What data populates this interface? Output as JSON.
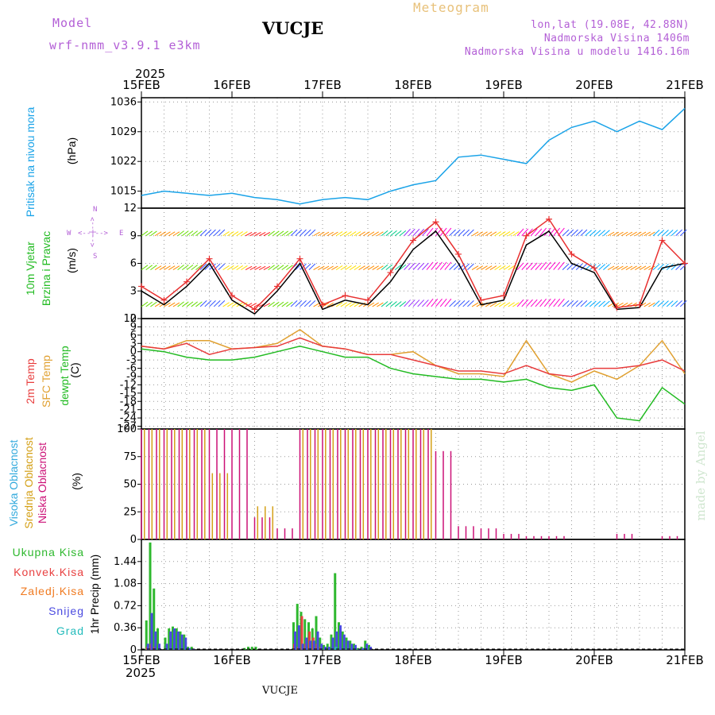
{
  "header": {
    "model_label": "Model",
    "model_name": "wrf-nmm_v3.9.1 e3km",
    "station": "VUCJE",
    "meteogram": "Meteogram",
    "lonlat": "lon,lat (19.08E, 42.88N)",
    "elevation": "Nadmorska Visina 1406m",
    "model_elevation": "Nadmorska Visina u modelu 1416.16m",
    "year_top": "2025",
    "year_bottom": "2025",
    "footer": "VUCJE",
    "watermark": "made by Angel"
  },
  "colors": {
    "pressure": "#1aa3e8",
    "wind": "#000000",
    "gust": "#e83030",
    "t2m": "#e83c3c",
    "tsfc": "#e0a030",
    "dew": "#22bb22",
    "high_cloud": "#33aadd",
    "mid_cloud": "#d4a017",
    "low_cloud": "#cc1177",
    "total": "#2eb82e",
    "conv": "#e84040",
    "frozen": "#f07a20",
    "snow": "#4a4ae0",
    "hail": "#22bbbb"
  },
  "axis": {
    "dates": [
      "15FEB",
      "16FEB",
      "17FEB",
      "18FEB",
      "19FEB",
      "20FEB",
      "21FEB"
    ]
  },
  "panels": {
    "pressure": {
      "label1": "Pritisak na nivou mora",
      "label2": "(hPa)"
    },
    "wind": {
      "label1": "10m Vjetar",
      "label2": "Brzina i Pravac",
      "label3": "(m/s)",
      "compass_n": "N",
      "compass_s": "S",
      "compass_w": "W",
      "compass_e": "E",
      "compass_ns": "<--|-->",
      "compass_ew": "<--|-->"
    },
    "temp": {
      "label1": "2m Temp",
      "label2": "SFC Temp",
      "label3": "dewpt Temp",
      "label4": "(C)"
    },
    "cloud": {
      "label1": "Visoka Oblacnost",
      "label2": "Srednja Oblacnost",
      "label3": "Niska Oblacnost",
      "label4": "(%)"
    },
    "precip": {
      "leg1": "Ukupna Kisa",
      "leg2": "Konvek.Kisa",
      "leg3": "Zaledj.Kisa",
      "leg4": "Snijeg",
      "leg5": "Grad",
      "ylabel": "1hr Precip (mm)"
    }
  },
  "chart_data": [
    {
      "type": "line",
      "title": "Pritisak na nivou mora",
      "ylabel": "(hPa)",
      "x_hours": [
        0,
        6,
        12,
        18,
        24,
        30,
        36,
        42,
        48,
        54,
        60,
        66,
        72,
        78,
        84,
        90,
        96,
        102,
        108,
        114,
        120,
        126,
        132,
        138,
        144
      ],
      "ylim": [
        1011,
        1037
      ],
      "yticks": [
        1015,
        1022,
        1029,
        1036
      ],
      "series": [
        {
          "name": "MSLP",
          "values": [
            1014,
            1015,
            1014.5,
            1014,
            1014.5,
            1013.5,
            1013,
            1012,
            1013,
            1013.5,
            1013,
            1015,
            1016.5,
            1017.5,
            1023,
            1023.5,
            1022.5,
            1021.5,
            1027,
            1030,
            1031.5,
            1029,
            1031.5,
            1029.5,
            1034.5
          ]
        }
      ]
    },
    {
      "type": "line",
      "title": "10m Vjetar Brzina i Pravac",
      "ylabel": "(m/s)",
      "x_hours": [
        0,
        6,
        12,
        18,
        24,
        30,
        36,
        42,
        48,
        54,
        60,
        66,
        72,
        78,
        84,
        90,
        96,
        102,
        108,
        114,
        120,
        126,
        132,
        138,
        144
      ],
      "ylim": [
        0,
        12
      ],
      "yticks": [
        0,
        3,
        6,
        9,
        12
      ],
      "series": [
        {
          "name": "Brzina",
          "values": [
            3,
            1.5,
            3.5,
            6,
            2,
            0.5,
            3,
            6,
            1,
            2,
            1.5,
            4,
            7.5,
            9.5,
            6,
            1.5,
            2,
            8,
            9.5,
            6,
            5,
            1,
            1.2,
            5.5,
            6
          ]
        },
        {
          "name": "Udar",
          "values": [
            3.5,
            2,
            4,
            6.5,
            2.5,
            1,
            3.5,
            6.5,
            1.5,
            2.5,
            2,
            5,
            8.5,
            10.5,
            7,
            2,
            2.5,
            9,
            10.8,
            7,
            5.5,
            1.2,
            1.5,
            8.5,
            6
          ]
        }
      ]
    },
    {
      "type": "line",
      "title": "Temperatura",
      "ylabel": "(C)",
      "x_hours": [
        0,
        6,
        12,
        18,
        24,
        30,
        36,
        42,
        48,
        54,
        60,
        66,
        72,
        78,
        84,
        90,
        96,
        102,
        108,
        114,
        120,
        126,
        132,
        138,
        144
      ],
      "ylim": [
        -28,
        12
      ],
      "yticks": [
        -27,
        -24,
        -21,
        -18,
        -15,
        -12,
        -9,
        -6,
        -3,
        0,
        3,
        6,
        9,
        12
      ],
      "series": [
        {
          "name": "2m Temp",
          "values": [
            2,
            1,
            3,
            -1,
            1,
            1.5,
            2,
            5,
            2,
            1,
            -1,
            -1,
            -3,
            -5,
            -7,
            -7,
            -8,
            -5,
            -8,
            -9,
            -6,
            -6,
            -5,
            -3,
            -7
          ]
        },
        {
          "name": "SFC Temp",
          "values": [
            2,
            1,
            4,
            4,
            1,
            1.5,
            3,
            8,
            2,
            1,
            -1,
            -1,
            0,
            -5,
            -8,
            -8,
            -9,
            4,
            -8,
            -11,
            -7,
            -10,
            -5,
            4,
            -8
          ]
        },
        {
          "name": "dewpt Temp",
          "values": [
            1,
            0,
            -2,
            -3,
            -3,
            -2,
            0,
            2,
            0,
            -2,
            -2,
            -6,
            -8,
            -9,
            -10,
            -10,
            -11,
            -10,
            -13,
            -14,
            -12,
            -24,
            -25,
            -13,
            -19
          ]
        }
      ]
    },
    {
      "type": "bar",
      "title": "Oblacnost",
      "ylabel": "(%)",
      "x_hours": [
        0,
        6,
        12,
        18,
        24,
        30,
        36,
        42,
        48,
        54,
        60,
        66,
        72,
        78,
        84,
        90,
        96,
        102,
        108,
        114,
        120,
        126,
        132,
        138,
        144
      ],
      "ylim": [
        0,
        100
      ],
      "yticks": [
        0,
        25,
        50,
        75,
        100
      ],
      "series": [
        {
          "name": "Visoka Oblacnost",
          "values": [
            0,
            0,
            0,
            0,
            0,
            0,
            0,
            0,
            0,
            0,
            0,
            0,
            0,
            0,
            0,
            0,
            0,
            0,
            0,
            0,
            0,
            0,
            0,
            0,
            0
          ]
        },
        {
          "name": "Srednja Oblacnost",
          "values": [
            100,
            100,
            100,
            60,
            0,
            30,
            0,
            100,
            100,
            100,
            100,
            100,
            100,
            0,
            0,
            0,
            0,
            0,
            0,
            0,
            0,
            0,
            0,
            0,
            0
          ]
        },
        {
          "name": "Niska Oblacnost",
          "values": [
            100,
            100,
            100,
            100,
            100,
            20,
            10,
            100,
            100,
            100,
            100,
            100,
            100,
            80,
            12,
            10,
            5,
            3,
            3,
            0,
            0,
            5,
            0,
            3,
            0
          ]
        }
      ]
    },
    {
      "type": "bar",
      "title": "1hr Precip",
      "ylabel": "(mm)",
      "x_hours": [
        0,
        1,
        2,
        3,
        4,
        5,
        6,
        7,
        8,
        9,
        10,
        11,
        12,
        13,
        14,
        15,
        16,
        17,
        18,
        19,
        20,
        21,
        22,
        23,
        24,
        25,
        26,
        27,
        28,
        29,
        30,
        31,
        32,
        33,
        34,
        35,
        36,
        37,
        38,
        39,
        40,
        41,
        42,
        43,
        44,
        45,
        46,
        47,
        48,
        49,
        50,
        51,
        52,
        53,
        54,
        55,
        56,
        57,
        58,
        59,
        60,
        61,
        62,
        63,
        64,
        65,
        66,
        67,
        68,
        69,
        70,
        71,
        72
      ],
      "ylim": [
        0,
        1.8
      ],
      "yticks": [
        0,
        0.36,
        0.72,
        1.08,
        1.44
      ],
      "series": [
        {
          "name": "Ukupna Kisa",
          "values": [
            0,
            0.48,
            1.75,
            1.0,
            0.35,
            0,
            0.2,
            0.35,
            0.38,
            0.35,
            0.3,
            0.25,
            0.05,
            0.05,
            0,
            0,
            0,
            0,
            0,
            0,
            0,
            0,
            0,
            0,
            0,
            0,
            0,
            0.03,
            0.05,
            0.05,
            0.05,
            0,
            0,
            0,
            0,
            0,
            0,
            0,
            0,
            0,
            0.45,
            0.75,
            0.62,
            0.5,
            0.45,
            0.35,
            0.55,
            0.2,
            0.08,
            0.1,
            0.25,
            1.25,
            0.45,
            0.3,
            0.2,
            0.15,
            0.1,
            0.03,
            0.05,
            0.15,
            0.08,
            0,
            0,
            0,
            0,
            0,
            0,
            0,
            0,
            0,
            0,
            0,
            0
          ]
        },
        {
          "name": "Konvek.Kisa",
          "values": [
            0,
            0.05,
            0.1,
            0.05,
            0,
            0,
            0,
            0,
            0,
            0,
            0,
            0,
            0,
            0,
            0,
            0,
            0,
            0,
            0,
            0,
            0,
            0,
            0,
            0,
            0,
            0,
            0,
            0,
            0,
            0,
            0,
            0,
            0,
            0,
            0,
            0,
            0,
            0,
            0,
            0,
            0.1,
            0.05,
            0.55,
            0.1,
            0.3,
            0.2,
            0.1,
            0.05,
            0,
            0,
            0,
            0.05,
            0,
            0,
            0,
            0,
            0,
            0,
            0,
            0,
            0,
            0,
            0,
            0,
            0,
            0,
            0,
            0,
            0,
            0,
            0,
            0,
            0
          ]
        },
        {
          "name": "Zaledj.Kisa",
          "values": [
            0,
            0,
            0,
            0,
            0,
            0,
            0,
            0,
            0,
            0,
            0,
            0,
            0,
            0,
            0,
            0,
            0,
            0,
            0,
            0,
            0,
            0,
            0,
            0,
            0,
            0,
            0,
            0,
            0,
            0,
            0,
            0,
            0,
            0,
            0,
            0,
            0,
            0,
            0,
            0,
            0,
            0,
            0,
            0,
            0,
            0,
            0,
            0,
            0,
            0,
            0,
            0,
            0,
            0,
            0,
            0,
            0,
            0,
            0,
            0,
            0,
            0,
            0,
            0,
            0,
            0,
            0,
            0,
            0,
            0,
            0,
            0,
            0
          ]
        },
        {
          "name": "Snijeg",
          "values": [
            0,
            0.1,
            0.6,
            0.3,
            0.1,
            0,
            0.1,
            0.3,
            0.35,
            0.3,
            0.25,
            0.2,
            0.03,
            0.02,
            0,
            0,
            0,
            0,
            0,
            0,
            0,
            0,
            0,
            0,
            0,
            0,
            0,
            0,
            0,
            0,
            0,
            0,
            0,
            0,
            0,
            0,
            0,
            0,
            0,
            0,
            0.3,
            0.4,
            0.1,
            0.2,
            0.15,
            0.15,
            0.3,
            0.1,
            0.05,
            0.05,
            0.2,
            0.3,
            0.4,
            0.25,
            0.15,
            0.1,
            0.08,
            0.02,
            0.03,
            0.1,
            0.05,
            0,
            0,
            0,
            0,
            0,
            0,
            0,
            0,
            0,
            0,
            0,
            0
          ]
        },
        {
          "name": "Grad",
          "values": [
            0,
            0,
            0,
            0,
            0,
            0,
            0,
            0,
            0,
            0,
            0,
            0,
            0,
            0,
            0,
            0,
            0,
            0,
            0,
            0,
            0,
            0,
            0,
            0,
            0,
            0,
            0,
            0,
            0,
            0,
            0,
            0,
            0,
            0,
            0,
            0,
            0,
            0,
            0,
            0,
            0,
            0,
            0,
            0,
            0,
            0,
            0,
            0,
            0,
            0,
            0,
            0.05,
            0,
            0,
            0,
            0,
            0,
            0,
            0,
            0,
            0,
            0,
            0,
            0,
            0,
            0,
            0,
            0,
            0,
            0,
            0,
            0,
            0
          ]
        }
      ]
    }
  ]
}
